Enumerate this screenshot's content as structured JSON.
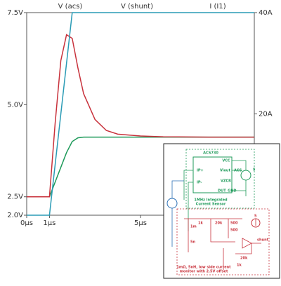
{
  "chart_data": {
    "type": "line",
    "x": [
      0,
      1,
      1.25,
      1.5,
      1.75,
      2,
      2.25,
      2.5,
      3,
      3.5,
      4,
      5,
      6,
      8,
      10
    ],
    "series": [
      {
        "name": "V (acs)",
        "color": "#1e9a5a",
        "values": [
          2.5,
          2.5,
          2.9,
          3.3,
          3.7,
          4.0,
          4.1,
          4.12,
          4.12,
          4.12,
          4.12,
          4.12,
          4.12,
          4.12,
          4.12
        ]
      },
      {
        "name": "V (shunt)",
        "color": "#c8323c",
        "values": [
          2.5,
          2.5,
          4.5,
          6.2,
          6.9,
          6.8,
          6.0,
          5.3,
          4.6,
          4.3,
          4.2,
          4.15,
          4.13,
          4.12,
          4.12
        ]
      },
      {
        "name": "I (I1)",
        "color": "#2a9bb5",
        "axis": "y2",
        "values": [
          0,
          0,
          10,
          20,
          30,
          40,
          40,
          40,
          40,
          40,
          40,
          40,
          40,
          40,
          40
        ]
      }
    ],
    "xlim": [
      0,
      10
    ],
    "xticks": [
      {
        "value": 0,
        "label": "0µs"
      },
      {
        "value": 1,
        "label": "1µs"
      },
      {
        "value": 5,
        "label": "5µs"
      }
    ],
    "ylim": [
      2.0,
      7.5
    ],
    "yticks": [
      {
        "value": 2.0,
        "label": "2.0V"
      },
      {
        "value": 2.5,
        "label": "2.5V"
      },
      {
        "value": 5.0,
        "label": "5.0V"
      },
      {
        "value": 7.5,
        "label": "7.5V"
      }
    ],
    "y2lim": [
      0,
      40
    ],
    "y2ticks": [
      {
        "value": 20,
        "label": "20A"
      },
      {
        "value": 40,
        "label": "40A"
      }
    ]
  },
  "inset": {
    "labels": [
      "ACS730",
      "VCC",
      "IP+",
      "Viout",
      "ACS",
      "5",
      "VZCR",
      "IP-",
      "DUT_GND",
      "1MHz Integrated",
      "Current Sensor",
      "1k",
      "20k",
      "500",
      "5",
      "1m",
      "500",
      "5n",
      "shunt",
      "20k",
      "1k",
      "1mΩ, 5nH, low side current",
      "monitor with 2.5V offset"
    ]
  }
}
